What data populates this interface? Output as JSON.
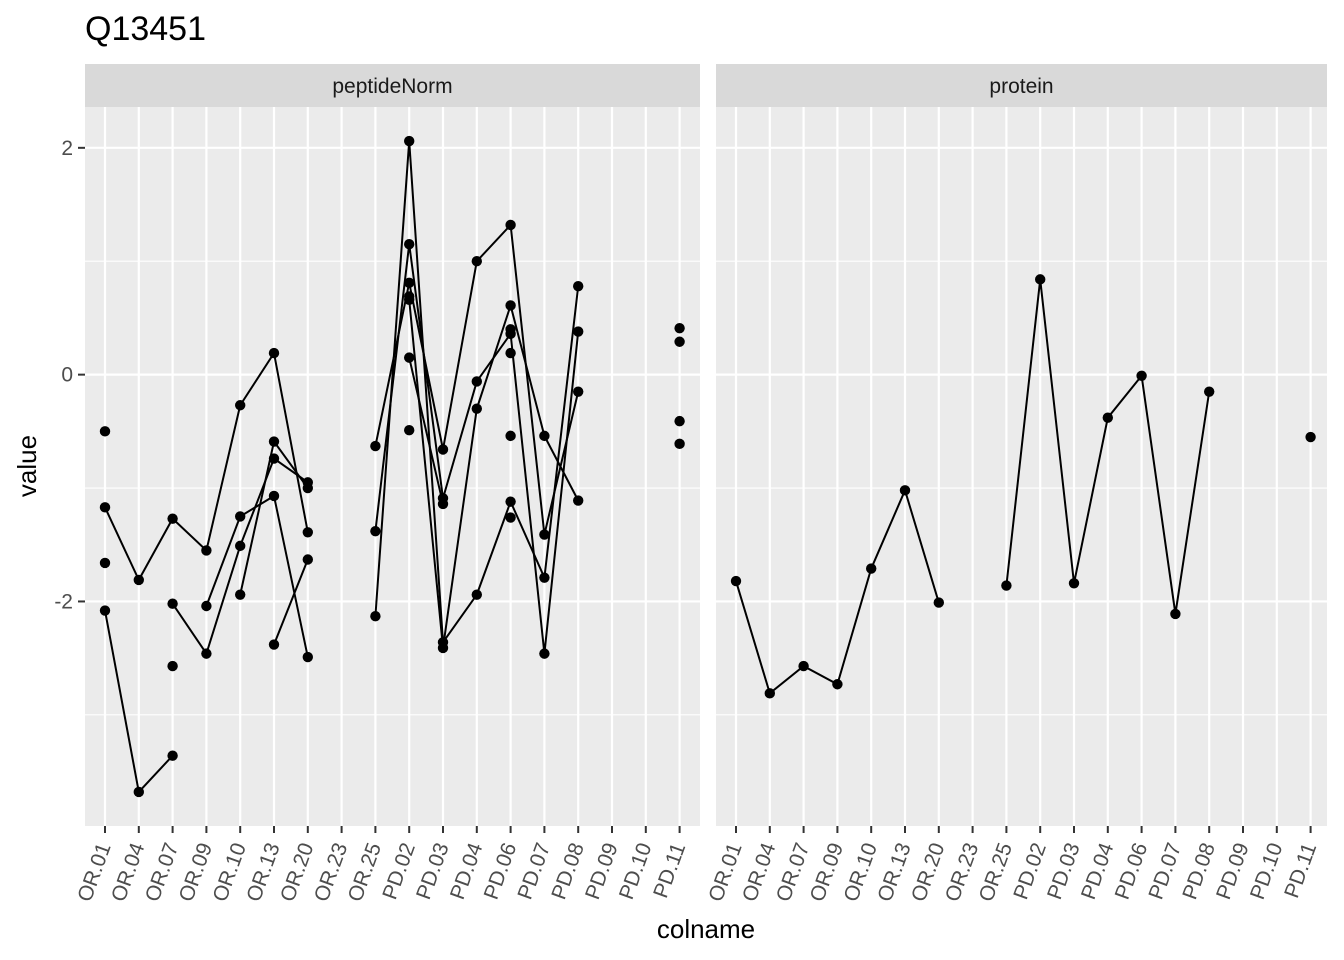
{
  "chart_data": {
    "type": "line",
    "title": "Q13451",
    "xlabel": "colname",
    "ylabel": "value",
    "ylim": [
      -3.98,
      2.36
    ],
    "yticks": [
      -2,
      0,
      2
    ],
    "categories": [
      "OR.01",
      "OR.04",
      "OR.07",
      "OR.09",
      "OR.10",
      "OR.13",
      "OR.20",
      "OR.23",
      "OR.25",
      "PD.02",
      "PD.03",
      "PD.04",
      "PD.06",
      "PD.07",
      "PD.08",
      "PD.09",
      "PD.10",
      "PD.11"
    ],
    "grid": true,
    "panels": [
      {
        "name": "peptideNorm",
        "series": [
          {
            "values": [
              -2.08,
              -3.68,
              -3.36,
              null,
              null,
              null,
              null,
              null,
              -2.13,
              2.06,
              -2.36,
              -1.94,
              -1.12,
              -1.79,
              0.78,
              null,
              null,
              null
            ]
          },
          {
            "values": [
              -1.17,
              -1.81,
              -1.27,
              -1.55,
              -0.27,
              0.19,
              -1.39,
              null,
              -0.63,
              0.81,
              -0.66,
              1.0,
              1.32,
              -1.41,
              -0.15,
              null,
              null,
              null
            ]
          },
          {
            "values": [
              null,
              null,
              -2.02,
              -2.46,
              -1.51,
              -0.74,
              -0.95,
              null,
              -1.38,
              1.15,
              -1.09,
              -0.06,
              0.36,
              -2.46,
              0.38,
              null,
              null,
              null
            ]
          },
          {
            "values": [
              null,
              null,
              null,
              -2.04,
              -1.25,
              -1.07,
              -2.49,
              null,
              null,
              0.66,
              -2.41,
              -0.3,
              0.61,
              -0.54,
              -1.11,
              null,
              null,
              null
            ]
          },
          {
            "values": [
              null,
              null,
              null,
              null,
              -1.94,
              -0.59,
              -1.0,
              null,
              null,
              0.15,
              -1.14,
              null,
              0.19,
              null,
              null,
              null,
              null,
              null
            ]
          },
          {
            "values": [
              -0.5,
              null,
              null,
              null,
              null,
              null,
              null,
              null,
              null,
              null,
              null,
              null,
              null,
              null,
              null,
              null,
              null,
              0.41
            ]
          },
          {
            "values": [
              -1.66,
              null,
              -2.57,
              null,
              null,
              -2.38,
              -1.63,
              null,
              null,
              -0.49,
              null,
              null,
              0.4,
              null,
              null,
              null,
              null,
              0.29
            ]
          },
          {
            "values": [
              null,
              null,
              null,
              null,
              null,
              null,
              null,
              null,
              null,
              0.69,
              null,
              null,
              -0.54,
              null,
              null,
              null,
              null,
              -0.41
            ]
          },
          {
            "values": [
              null,
              null,
              null,
              null,
              null,
              null,
              null,
              null,
              null,
              null,
              null,
              null,
              -1.26,
              null,
              null,
              null,
              null,
              -0.61
            ]
          }
        ]
      },
      {
        "name": "protein",
        "series": [
          {
            "values": [
              -1.82,
              -2.81,
              -2.57,
              -2.73,
              -1.71,
              -1.02,
              -2.01,
              null,
              -1.86,
              0.84,
              -1.84,
              -0.38,
              -0.01,
              -2.11,
              -0.15,
              null,
              null,
              -0.55
            ]
          }
        ]
      }
    ]
  }
}
